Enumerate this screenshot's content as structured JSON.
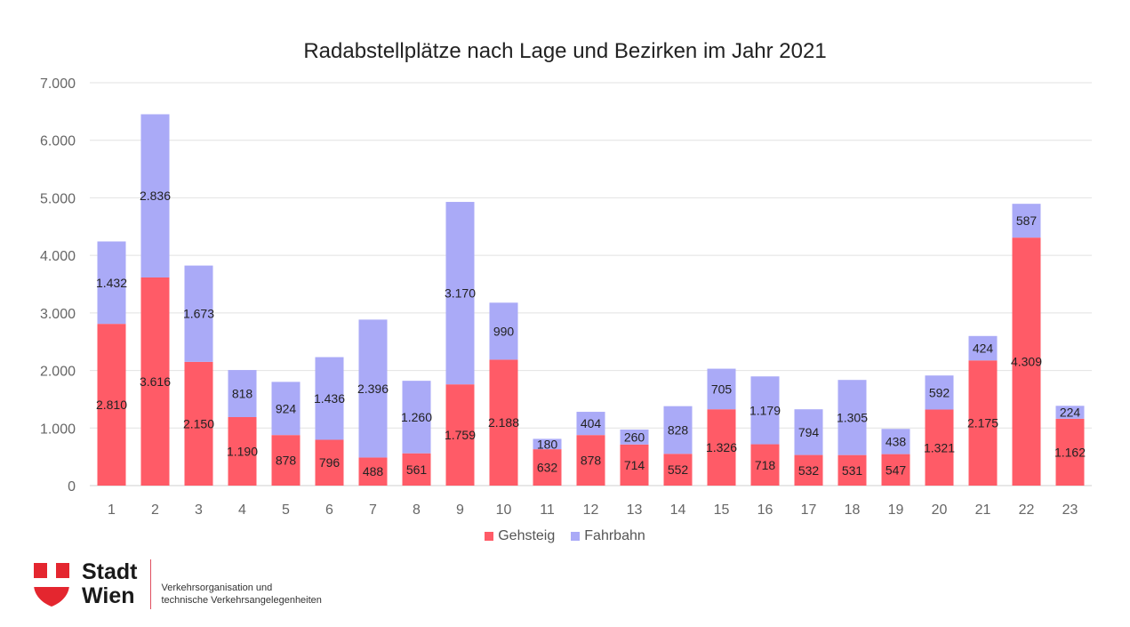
{
  "chart_data": {
    "type": "bar",
    "stacked": true,
    "title": "Radabstellplätze nach Lage und Bezirken im Jahr 2021",
    "xlabel": "",
    "ylabel": "",
    "ylim": [
      0,
      7000
    ],
    "yticks": [
      "0",
      "1.000",
      "2.000",
      "3.000",
      "4.000",
      "5.000",
      "6.000",
      "7.000"
    ],
    "grid": true,
    "legend_position": "bottom",
    "categories": [
      "1",
      "2",
      "3",
      "4",
      "5",
      "6",
      "7",
      "8",
      "9",
      "10",
      "11",
      "12",
      "13",
      "14",
      "15",
      "16",
      "17",
      "18",
      "19",
      "20",
      "21",
      "22",
      "23"
    ],
    "series": [
      {
        "name": "Gehsteig",
        "color": "#ff5b67",
        "values": [
          2810,
          3616,
          2150,
          1190,
          878,
          796,
          488,
          561,
          1759,
          2188,
          632,
          878,
          714,
          552,
          1326,
          718,
          532,
          531,
          547,
          1321,
          2175,
          4309,
          1162
        ],
        "labels": [
          "2.810",
          "3.616",
          "2.150",
          "1.190",
          "878",
          "796",
          "488",
          "561",
          "1.759",
          "2.188",
          "632",
          "878",
          "714",
          "552",
          "1.326",
          "718",
          "532",
          "531",
          "547",
          "1.321",
          "2.175",
          "4.309",
          "1.162"
        ]
      },
      {
        "name": "Fahrbahn",
        "color": "#aaaaf7",
        "values": [
          1432,
          2836,
          1673,
          818,
          924,
          1436,
          2396,
          1260,
          3170,
          990,
          180,
          404,
          260,
          828,
          705,
          1179,
          794,
          1305,
          438,
          592,
          424,
          587,
          224
        ],
        "labels": [
          "1.432",
          "2.836",
          "1.673",
          "818",
          "924",
          "1.436",
          "2.396",
          "1.260",
          "3.170",
          "990",
          "180",
          "404",
          "260",
          "828",
          "705",
          "1.179",
          "794",
          "1.305",
          "438",
          "592",
          "424",
          "587",
          "224"
        ]
      }
    ]
  },
  "footer": {
    "logo_line1": "Stadt",
    "logo_line2": "Wien",
    "org_line1": "Verkehrsorganisation und",
    "org_line2": "technische Verkehrsangelegenheiten"
  }
}
